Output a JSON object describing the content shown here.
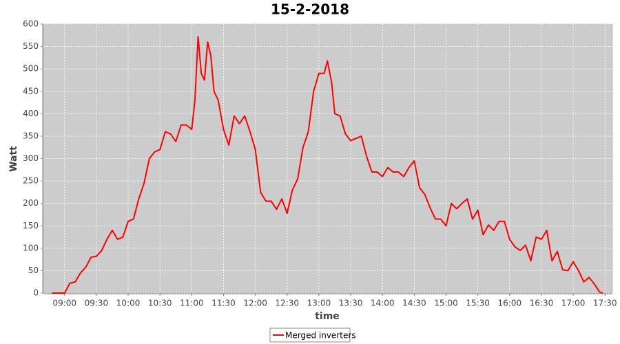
{
  "chart_data": {
    "type": "line",
    "title": "15-2-2018",
    "x_label": "time",
    "y_label": "Watt",
    "x": [
      "08:48",
      "08:55",
      "09:00",
      "09:05",
      "09:10",
      "09:15",
      "09:20",
      "09:25",
      "09:30",
      "09:35",
      "09:40",
      "09:45",
      "09:50",
      "09:55",
      "10:00",
      "10:05",
      "10:10",
      "10:15",
      "10:20",
      "10:25",
      "10:30",
      "10:35",
      "10:40",
      "10:45",
      "10:50",
      "10:55",
      "11:00",
      "11:03",
      "11:06",
      "11:09",
      "11:12",
      "11:15",
      "11:18",
      "11:21",
      "11:25",
      "11:30",
      "11:35",
      "11:40",
      "11:45",
      "11:50",
      "11:55",
      "12:00",
      "12:05",
      "12:10",
      "12:15",
      "12:20",
      "12:25",
      "12:30",
      "12:35",
      "12:40",
      "12:45",
      "12:50",
      "12:55",
      "13:00",
      "13:05",
      "13:08",
      "13:12",
      "13:15",
      "13:20",
      "13:25",
      "13:30",
      "13:35",
      "13:40",
      "13:45",
      "13:50",
      "13:55",
      "14:00",
      "14:05",
      "14:10",
      "14:15",
      "14:20",
      "14:25",
      "14:30",
      "14:35",
      "14:40",
      "14:45",
      "14:50",
      "14:55",
      "15:00",
      "15:05",
      "15:10",
      "15:15",
      "15:20",
      "15:25",
      "15:30",
      "15:35",
      "15:40",
      "15:45",
      "15:50",
      "15:55",
      "16:00",
      "16:05",
      "16:10",
      "16:15",
      "16:20",
      "16:25",
      "16:30",
      "16:35",
      "16:40",
      "16:45",
      "16:50",
      "16:55",
      "17:00",
      "17:05",
      "17:10",
      "17:15",
      "17:20",
      "17:25",
      "17:28"
    ],
    "series": [
      {
        "name": "Merged inverters",
        "color": "#ff0000",
        "values": [
          0,
          0,
          0,
          22,
          25,
          45,
          58,
          80,
          82,
          95,
          120,
          140,
          120,
          125,
          160,
          165,
          210,
          245,
          300,
          315,
          320,
          360,
          355,
          338,
          375,
          375,
          365,
          430,
          572,
          490,
          475,
          560,
          530,
          450,
          430,
          365,
          330,
          395,
          378,
          395,
          360,
          320,
          225,
          205,
          205,
          187,
          210,
          178,
          230,
          255,
          325,
          360,
          450,
          490,
          490,
          518,
          470,
          400,
          395,
          355,
          340,
          345,
          350,
          305,
          270,
          270,
          260,
          280,
          270,
          270,
          260,
          280,
          295,
          235,
          220,
          190,
          165,
          165,
          150,
          200,
          188,
          200,
          210,
          165,
          185,
          130,
          152,
          140,
          160,
          160,
          120,
          103,
          95,
          107,
          72,
          125,
          120,
          140,
          72,
          93,
          52,
          50,
          70,
          50,
          25,
          35,
          20,
          2,
          0
        ]
      }
    ],
    "xlim": [
      "08:40",
      "17:37"
    ],
    "xticks": [
      "09:00",
      "09:30",
      "10:00",
      "10:30",
      "11:00",
      "11:30",
      "12:00",
      "12:30",
      "13:00",
      "13:30",
      "14:00",
      "14:30",
      "15:00",
      "15:30",
      "16:00",
      "16:30",
      "17:00",
      "17:30"
    ],
    "ylim": [
      0,
      600
    ],
    "yticks": [
      0,
      50,
      100,
      150,
      200,
      250,
      300,
      350,
      400,
      450,
      500,
      550,
      600
    ],
    "grid": true,
    "legend": "bottom",
    "background": "#cccccc"
  }
}
